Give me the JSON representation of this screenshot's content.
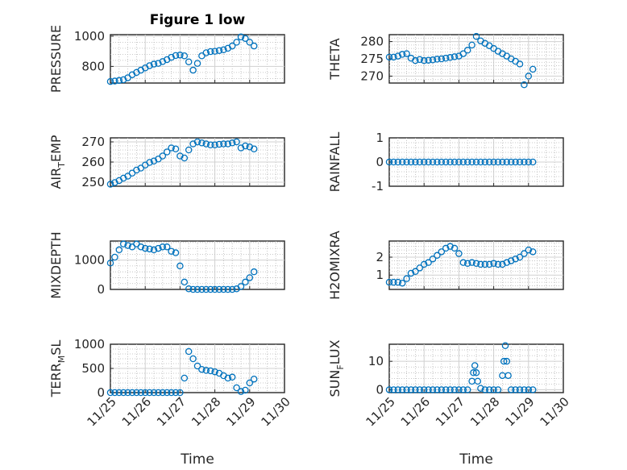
{
  "figure": {
    "title": "Figure 1 low"
  },
  "colors": {
    "marker": "#0072BD",
    "axes": "#262626",
    "grid": "#d0d0d0"
  },
  "chart_data": [
    {
      "type": "scatter",
      "id": "pressure",
      "title": "Figure 1 low",
      "ylabel": "PRESSURE",
      "xlabel": "",
      "xlim": [
        "2023-11-25",
        "2023-11-30"
      ],
      "ylim": [
        690,
        1010
      ],
      "yticks": [
        800,
        1000
      ],
      "ytick_labels": [
        "800",
        "1000"
      ],
      "xticks": [],
      "xtick_labels": [],
      "grid": true,
      "minor_grid": true,
      "xlabels_visible": false,
      "x": [
        "2023-11-25 00:00",
        "2023-11-25 03:00",
        "2023-11-25 06:00",
        "2023-11-25 09:00",
        "2023-11-25 12:00",
        "2023-11-25 15:00",
        "2023-11-25 18:00",
        "2023-11-25 21:00",
        "2023-11-26 00:00",
        "2023-11-26 03:00",
        "2023-11-26 06:00",
        "2023-11-26 09:00",
        "2023-11-26 12:00",
        "2023-11-26 15:00",
        "2023-11-26 18:00",
        "2023-11-26 21:00",
        "2023-11-27 00:00",
        "2023-11-27 03:00",
        "2023-11-27 06:00",
        "2023-11-27 09:00",
        "2023-11-27 12:00",
        "2023-11-27 15:00",
        "2023-11-27 18:00",
        "2023-11-27 21:00",
        "2023-11-28 00:00",
        "2023-11-28 03:00",
        "2023-11-28 06:00",
        "2023-11-28 09:00",
        "2023-11-28 12:00",
        "2023-11-28 15:00",
        "2023-11-28 18:00",
        "2023-11-28 21:00",
        "2023-11-29 00:00",
        "2023-11-29 03:00"
      ],
      "y": [
        700,
        703,
        707,
        712,
        725,
        745,
        760,
        775,
        790,
        805,
        815,
        820,
        832,
        845,
        860,
        872,
        875,
        870,
        830,
        775,
        820,
        870,
        890,
        898,
        900,
        905,
        910,
        920,
        935,
        960,
        995,
        985,
        960,
        935
      ]
    },
    {
      "type": "scatter",
      "id": "theta",
      "title": "",
      "ylabel": "THETA",
      "xlabel": "",
      "xlim": [
        "2023-11-25",
        "2023-11-30"
      ],
      "ylim": [
        268,
        282
      ],
      "yticks": [
        270,
        275,
        280
      ],
      "ytick_labels": [
        "270",
        "275",
        "280"
      ],
      "xticks": [],
      "xtick_labels": [],
      "grid": true,
      "minor_grid": true,
      "xlabels_visible": false,
      "x": [
        "2023-11-25 00:00",
        "2023-11-25 03:00",
        "2023-11-25 06:00",
        "2023-11-25 09:00",
        "2023-11-25 12:00",
        "2023-11-25 15:00",
        "2023-11-25 18:00",
        "2023-11-25 21:00",
        "2023-11-26 00:00",
        "2023-11-26 03:00",
        "2023-11-26 06:00",
        "2023-11-26 09:00",
        "2023-11-26 12:00",
        "2023-11-26 15:00",
        "2023-11-26 18:00",
        "2023-11-26 21:00",
        "2023-11-27 00:00",
        "2023-11-27 03:00",
        "2023-11-27 06:00",
        "2023-11-27 09:00",
        "2023-11-27 12:00",
        "2023-11-27 15:00",
        "2023-11-27 18:00",
        "2023-11-27 21:00",
        "2023-11-28 00:00",
        "2023-11-28 03:00",
        "2023-11-28 06:00",
        "2023-11-28 09:00",
        "2023-11-28 12:00",
        "2023-11-28 15:00",
        "2023-11-28 18:00",
        "2023-11-28 21:00",
        "2023-11-29 00:00",
        "2023-11-29 03:00"
      ],
      "y": [
        275.5,
        275.5,
        275.8,
        276.3,
        276.5,
        275.2,
        274.5,
        274.8,
        274.5,
        274.6,
        274.7,
        274.9,
        275,
        275.2,
        275.4,
        275.6,
        275.8,
        276.5,
        277.5,
        279,
        281.5,
        280.2,
        279.5,
        278.8,
        278,
        277.2,
        276.5,
        275.8,
        275,
        274.3,
        273.5,
        267.5,
        270,
        272
      ]
    },
    {
      "type": "scatter",
      "id": "air-temp",
      "title": "",
      "ylabel": "AIR_TEMP",
      "xlabel": "",
      "xlim": [
        "2023-11-25",
        "2023-11-30"
      ],
      "ylim": [
        248,
        272
      ],
      "yticks": [
        250,
        260,
        270
      ],
      "ytick_labels": [
        "250",
        "260",
        "270"
      ],
      "xticks": [],
      "xtick_labels": [],
      "grid": true,
      "minor_grid": true,
      "xlabels_visible": false,
      "x": [
        "2023-11-25 00:00",
        "2023-11-25 03:00",
        "2023-11-25 06:00",
        "2023-11-25 09:00",
        "2023-11-25 12:00",
        "2023-11-25 15:00",
        "2023-11-25 18:00",
        "2023-11-25 21:00",
        "2023-11-26 00:00",
        "2023-11-26 03:00",
        "2023-11-26 06:00",
        "2023-11-26 09:00",
        "2023-11-26 12:00",
        "2023-11-26 15:00",
        "2023-11-26 18:00",
        "2023-11-26 21:00",
        "2023-11-27 00:00",
        "2023-11-27 03:00",
        "2023-11-27 06:00",
        "2023-11-27 09:00",
        "2023-11-27 12:00",
        "2023-11-27 15:00",
        "2023-11-27 18:00",
        "2023-11-27 21:00",
        "2023-11-28 00:00",
        "2023-11-28 03:00",
        "2023-11-28 06:00",
        "2023-11-28 09:00",
        "2023-11-28 12:00",
        "2023-11-28 15:00",
        "2023-11-28 18:00",
        "2023-11-28 21:00",
        "2023-11-29 00:00",
        "2023-11-29 03:00"
      ],
      "y": [
        249,
        249.8,
        250.8,
        252,
        253,
        254.5,
        256,
        257,
        258.5,
        259.8,
        260.5,
        261.5,
        263,
        265,
        267,
        266.5,
        263,
        262,
        266,
        269,
        270,
        269.5,
        269,
        268.5,
        268.5,
        268.8,
        269,
        269,
        269.5,
        270,
        267,
        268,
        267.5,
        266.5
      ]
    },
    {
      "type": "scatter",
      "id": "rainfall",
      "title": "",
      "ylabel": "RAINFALL",
      "xlabel": "",
      "xlim": [
        "2023-11-25",
        "2023-11-30"
      ],
      "ylim": [
        -1,
        1
      ],
      "yticks": [
        -1,
        0,
        1
      ],
      "ytick_labels": [
        "-1",
        "0",
        "1"
      ],
      "xticks": [],
      "xtick_labels": [],
      "grid": true,
      "minor_grid": true,
      "xlabels_visible": false,
      "x": [
        "2023-11-25 00:00",
        "2023-11-25 03:00",
        "2023-11-25 06:00",
        "2023-11-25 09:00",
        "2023-11-25 12:00",
        "2023-11-25 15:00",
        "2023-11-25 18:00",
        "2023-11-25 21:00",
        "2023-11-26 00:00",
        "2023-11-26 03:00",
        "2023-11-26 06:00",
        "2023-11-26 09:00",
        "2023-11-26 12:00",
        "2023-11-26 15:00",
        "2023-11-26 18:00",
        "2023-11-26 21:00",
        "2023-11-27 00:00",
        "2023-11-27 03:00",
        "2023-11-27 06:00",
        "2023-11-27 09:00",
        "2023-11-27 12:00",
        "2023-11-27 15:00",
        "2023-11-27 18:00",
        "2023-11-27 21:00",
        "2023-11-28 00:00",
        "2023-11-28 03:00",
        "2023-11-28 06:00",
        "2023-11-28 09:00",
        "2023-11-28 12:00",
        "2023-11-28 15:00",
        "2023-11-28 18:00",
        "2023-11-28 21:00",
        "2023-11-29 00:00",
        "2023-11-29 03:00"
      ],
      "y": [
        0,
        0,
        0,
        0,
        0,
        0,
        0,
        0,
        0,
        0,
        0,
        0,
        0,
        0,
        0,
        0,
        0,
        0,
        0,
        0,
        0,
        0,
        0,
        0,
        0,
        0,
        0,
        0,
        0,
        0,
        0,
        0,
        0,
        0
      ]
    },
    {
      "type": "scatter",
      "id": "mixdepth",
      "title": "",
      "ylabel": "MIXDEPTH",
      "xlabel": "",
      "xlim": [
        "2023-11-25",
        "2023-11-30"
      ],
      "ylim": [
        0,
        1650
      ],
      "yticks": [
        0,
        1000
      ],
      "ytick_labels": [
        "0",
        "1000"
      ],
      "xticks": [],
      "xtick_labels": [],
      "grid": true,
      "minor_grid": true,
      "xlabels_visible": false,
      "x": [
        "2023-11-25 00:00",
        "2023-11-25 03:00",
        "2023-11-25 06:00",
        "2023-11-25 09:00",
        "2023-11-25 12:00",
        "2023-11-25 15:00",
        "2023-11-25 18:00",
        "2023-11-25 21:00",
        "2023-11-26 00:00",
        "2023-11-26 03:00",
        "2023-11-26 06:00",
        "2023-11-26 09:00",
        "2023-11-26 12:00",
        "2023-11-26 15:00",
        "2023-11-26 18:00",
        "2023-11-26 21:00",
        "2023-11-27 00:00",
        "2023-11-27 03:00",
        "2023-11-27 06:00",
        "2023-11-27 09:00",
        "2023-11-27 12:00",
        "2023-11-27 15:00",
        "2023-11-27 18:00",
        "2023-11-27 21:00",
        "2023-11-28 00:00",
        "2023-11-28 03:00",
        "2023-11-28 06:00",
        "2023-11-28 09:00",
        "2023-11-28 12:00",
        "2023-11-28 15:00",
        "2023-11-28 18:00",
        "2023-11-28 21:00",
        "2023-11-29 00:00",
        "2023-11-29 03:00"
      ],
      "y": [
        900,
        1100,
        1350,
        1550,
        1500,
        1450,
        1550,
        1450,
        1400,
        1380,
        1350,
        1400,
        1450,
        1450,
        1300,
        1250,
        800,
        250,
        20,
        0,
        0,
        0,
        0,
        0,
        0,
        0,
        0,
        0,
        0,
        20,
        100,
        250,
        400,
        600
      ]
    },
    {
      "type": "scatter",
      "id": "h2omixra",
      "title": "",
      "ylabel": "H2OMIXRA",
      "xlabel": "",
      "xlim": [
        "2023-11-25",
        "2023-11-30"
      ],
      "ylim": [
        0.2,
        2.9
      ],
      "yticks": [
        1,
        2
      ],
      "ytick_labels": [
        "1",
        "2"
      ],
      "xticks": [],
      "xtick_labels": [],
      "grid": true,
      "minor_grid": true,
      "xlabels_visible": false,
      "x": [
        "2023-11-25 00:00",
        "2023-11-25 03:00",
        "2023-11-25 06:00",
        "2023-11-25 09:00",
        "2023-11-25 12:00",
        "2023-11-25 15:00",
        "2023-11-25 18:00",
        "2023-11-25 21:00",
        "2023-11-26 00:00",
        "2023-11-26 03:00",
        "2023-11-26 06:00",
        "2023-11-26 09:00",
        "2023-11-26 12:00",
        "2023-11-26 15:00",
        "2023-11-26 18:00",
        "2023-11-26 21:00",
        "2023-11-27 00:00",
        "2023-11-27 03:00",
        "2023-11-27 06:00",
        "2023-11-27 09:00",
        "2023-11-27 12:00",
        "2023-11-27 15:00",
        "2023-11-27 18:00",
        "2023-11-27 21:00",
        "2023-11-28 00:00",
        "2023-11-28 03:00",
        "2023-11-28 06:00",
        "2023-11-28 09:00",
        "2023-11-28 12:00",
        "2023-11-28 15:00",
        "2023-11-28 18:00",
        "2023-11-28 21:00",
        "2023-11-29 00:00",
        "2023-11-29 03:00"
      ],
      "y": [
        0.6,
        0.6,
        0.6,
        0.55,
        0.8,
        1.1,
        1.2,
        1.4,
        1.6,
        1.7,
        1.9,
        2.1,
        2.3,
        2.5,
        2.6,
        2.5,
        2.2,
        1.7,
        1.65,
        1.7,
        1.65,
        1.6,
        1.6,
        1.6,
        1.65,
        1.6,
        1.6,
        1.7,
        1.8,
        1.9,
        2,
        2.2,
        2.4,
        2.3
      ]
    },
    {
      "type": "scatter",
      "id": "terr-msl",
      "title": "",
      "ylabel": "TERR_MSL",
      "xlabel": "Time",
      "xlim": [
        "2023-11-25",
        "2023-11-30"
      ],
      "ylim": [
        0,
        1000
      ],
      "yticks": [
        0,
        500,
        1000
      ],
      "ytick_labels": [
        "0",
        "500",
        "1000"
      ],
      "xticks": [
        "2023-11-25",
        "2023-11-26",
        "2023-11-27",
        "2023-11-28",
        "2023-11-29",
        "2023-11-30"
      ],
      "xtick_labels": [
        "11/25",
        "11/26",
        "11/27",
        "11/28",
        "11/29",
        "11/30"
      ],
      "grid": true,
      "minor_grid": true,
      "xlabels_visible": true,
      "x": [
        "2023-11-25 00:00",
        "2023-11-25 03:00",
        "2023-11-25 06:00",
        "2023-11-25 09:00",
        "2023-11-25 12:00",
        "2023-11-25 15:00",
        "2023-11-25 18:00",
        "2023-11-25 21:00",
        "2023-11-26 00:00",
        "2023-11-26 03:00",
        "2023-11-26 06:00",
        "2023-11-26 09:00",
        "2023-11-26 12:00",
        "2023-11-26 15:00",
        "2023-11-26 18:00",
        "2023-11-26 21:00",
        "2023-11-27 00:00",
        "2023-11-27 03:00",
        "2023-11-27 06:00",
        "2023-11-27 09:00",
        "2023-11-27 12:00",
        "2023-11-27 15:00",
        "2023-11-27 18:00",
        "2023-11-27 21:00",
        "2023-11-28 00:00",
        "2023-11-28 03:00",
        "2023-11-28 06:00",
        "2023-11-28 09:00",
        "2023-11-28 12:00",
        "2023-11-28 15:00",
        "2023-11-28 18:00",
        "2023-11-28 21:00",
        "2023-11-29 00:00",
        "2023-11-29 03:00"
      ],
      "y": [
        0,
        0,
        0,
        0,
        0,
        0,
        0,
        0,
        0,
        0,
        0,
        0,
        0,
        0,
        0,
        0,
        0,
        300,
        850,
        700,
        550,
        480,
        460,
        450,
        430,
        400,
        350,
        300,
        320,
        100,
        20,
        50,
        200,
        280
      ]
    },
    {
      "type": "scatter",
      "id": "sun-flux",
      "title": "",
      "ylabel": "SUN_FLUX",
      "xlabel": "Time",
      "xlim": [
        "2023-11-25",
        "2023-11-30"
      ],
      "ylim": [
        -1,
        16
      ],
      "yticks": [
        0,
        10
      ],
      "ytick_labels": [
        "0",
        "10"
      ],
      "xticks": [
        "2023-11-25",
        "2023-11-26",
        "2023-11-27",
        "2023-11-28",
        "2023-11-29",
        "2023-11-30"
      ],
      "xtick_labels": [
        "11/25",
        "11/26",
        "11/27",
        "11/28",
        "11/29",
        "11/30"
      ],
      "grid": true,
      "minor_grid": true,
      "xlabels_visible": true,
      "x": [
        "2023-11-25 00:00",
        "2023-11-25 03:00",
        "2023-11-25 06:00",
        "2023-11-25 09:00",
        "2023-11-25 12:00",
        "2023-11-25 15:00",
        "2023-11-25 18:00",
        "2023-11-25 21:00",
        "2023-11-26 00:00",
        "2023-11-26 03:00",
        "2023-11-26 06:00",
        "2023-11-26 09:00",
        "2023-11-26 12:00",
        "2023-11-26 15:00",
        "2023-11-26 18:00",
        "2023-11-26 21:00",
        "2023-11-27 00:00",
        "2023-11-27 03:00",
        "2023-11-27 06:00",
        "2023-11-27 09:00",
        "2023-11-27 10:00",
        "2023-11-27 11:00",
        "2023-11-27 12:00",
        "2023-11-27 13:00",
        "2023-11-27 15:00",
        "2023-11-27 18:00",
        "2023-11-27 21:00",
        "2023-11-28 00:00",
        "2023-11-28 03:00",
        "2023-11-28 06:00",
        "2023-11-28 07:00",
        "2023-11-28 08:00",
        "2023-11-28 09:00",
        "2023-11-28 10:00",
        "2023-11-28 12:00",
        "2023-11-28 15:00",
        "2023-11-28 18:00",
        "2023-11-28 21:00",
        "2023-11-29 00:00",
        "2023-11-29 03:00"
      ],
      "y": [
        0,
        0,
        0,
        0,
        0,
        0,
        0,
        0,
        0,
        0,
        0,
        0,
        0,
        0,
        0,
        0,
        0,
        0,
        0,
        3,
        6,
        8.5,
        6,
        3,
        0.5,
        0,
        0,
        0,
        0,
        5,
        10,
        15.5,
        10,
        5,
        0,
        0,
        0,
        0,
        0,
        0
      ]
    }
  ]
}
